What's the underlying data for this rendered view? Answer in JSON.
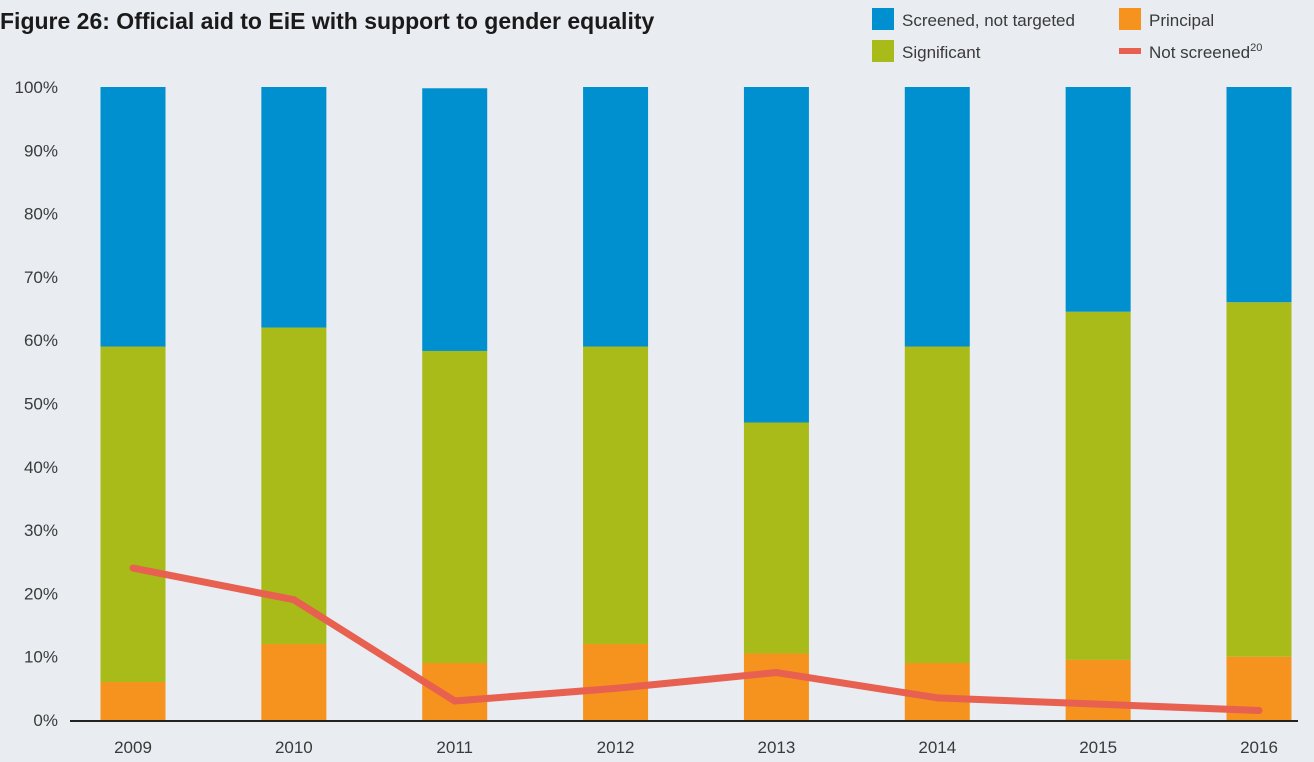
{
  "title": "Figure 26: Official aid to EiE with support to gender equality",
  "colors": {
    "screened_not_targeted": "#0090d0",
    "significant": "#a8bb18",
    "principal": "#f5931e",
    "not_screened": "#e8604f",
    "axis": "#222222",
    "background": "#e9ecf1"
  },
  "legend": [
    {
      "key": "screened_not_targeted",
      "label": "Screened, not targeted",
      "marker": "square"
    },
    {
      "key": "principal",
      "label": "Principal",
      "marker": "square"
    },
    {
      "key": "significant",
      "label": "Significant",
      "marker": "square"
    },
    {
      "key": "not_screened",
      "label": "Not screened",
      "superscript": "20",
      "marker": "line"
    }
  ],
  "chart_data": {
    "type": "bar",
    "stacked": true,
    "title": "Figure 26: Official aid to EiE with support to gender equality",
    "categories": [
      "2009",
      "2010",
      "2011",
      "2012",
      "2013",
      "2014",
      "2015",
      "2016"
    ],
    "y_ticks": [
      "0%",
      "10%",
      "20%",
      "30%",
      "40%",
      "50%",
      "60%",
      "70%",
      "80%",
      "90%",
      "100%"
    ],
    "ylim": [
      0,
      100
    ],
    "legend_position": "top-right",
    "grid": false,
    "series": [
      {
        "key": "principal",
        "name": "Principal",
        "type": "bar",
        "values": [
          6,
          12,
          9,
          12,
          10.5,
          9,
          9.5,
          10
        ]
      },
      {
        "key": "significant",
        "name": "Significant",
        "type": "bar",
        "values": [
          53,
          50,
          49.3,
          47,
          36.5,
          50,
          55,
          56
        ]
      },
      {
        "key": "screened_not_targeted",
        "name": "Screened, not targeted",
        "type": "bar",
        "values": [
          41,
          38,
          41.5,
          41,
          53,
          41,
          35.5,
          34
        ]
      },
      {
        "key": "not_screened",
        "name": "Not screened",
        "type": "line",
        "values": [
          24,
          19,
          3,
          5,
          7.5,
          3.5,
          2.5,
          1.5
        ]
      }
    ]
  }
}
